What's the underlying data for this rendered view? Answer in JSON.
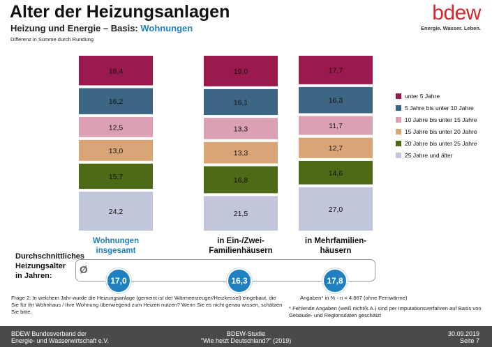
{
  "header": {
    "title": "Alter der Heizungsanlagen",
    "subtitle_prefix": "Heizung und Energie – Basis: ",
    "subtitle_highlight": "Wohnungen",
    "note": "Differenz in Summe durch Rundung"
  },
  "logo": {
    "word": "bdew",
    "tagline": "Energie. Wasser. Leben."
  },
  "colors": {
    "accent": "#1e7fc1",
    "brand_red": "#d8262e",
    "footer_bg": "#4a4a4a"
  },
  "chart_data": {
    "type": "bar",
    "stacked": true,
    "categories": [
      "Wohnungen\ninsgesamt",
      "in Ein-/Zwei-\nFamilienhäusern",
      "in Mehrfamilien-\nhäusern"
    ],
    "series": [
      {
        "name": "unter 5 Jahre",
        "color": "#9b1a4e",
        "values": [
          18.4,
          19.0,
          17.7
        ],
        "labels": [
          "18,4",
          "19,0",
          "17,7"
        ]
      },
      {
        "name": "5 Jahre bis unter 10 Jahre",
        "color": "#3d6584",
        "values": [
          16.2,
          16.1,
          16.3
        ],
        "labels": [
          "16,2",
          "16,1",
          "16,3"
        ]
      },
      {
        "name": "10 Jahre bis unter 15 Jahre",
        "color": "#dba0b4",
        "values": [
          12.5,
          13.3,
          11.7
        ],
        "labels": [
          "12,5",
          "13,3",
          "11,7"
        ]
      },
      {
        "name": "15 Jahre bis unter 20 Jahre",
        "color": "#d9a476",
        "values": [
          13.0,
          13.3,
          12.7
        ],
        "labels": [
          "13,0",
          "13,3",
          "12,7"
        ]
      },
      {
        "name": "20 Jahre bis unter 25 Jahre",
        "color": "#4d6a17",
        "values": [
          15.7,
          16.8,
          14.6
        ],
        "labels": [
          "15,7",
          "16,8",
          "14,6"
        ]
      },
      {
        "name": "25 Jahre und älter",
        "color": "#c2c6da",
        "values": [
          24.2,
          21.5,
          27.0
        ],
        "labels": [
          "24,2",
          "21,5",
          "27,0"
        ]
      }
    ],
    "legend_position": "right",
    "grid": false
  },
  "average": {
    "label_lines": [
      "Durchschnittliches",
      "Heizungsalter",
      "in Jahren:"
    ],
    "symbol": "Ø",
    "values": [
      "17,0",
      "16,3",
      "17,8"
    ]
  },
  "footnotes": {
    "question": "Frage 2: In welchem Jahr wurde die Heizungsanlage (gemeint ist der Wärmeerzeuger/Heizkessel) eingebaut, die Sie für Ihr Wohnhaus / Ihre Wohnung überwiegend zum Heizen nutzen? Wenn Sie es nicht genau wissen, schätzen Sie bitte.",
    "basis": "Angaben* in % - n = 4.867 (ohne Fernwärme)",
    "missing": "* Fehlende Angaben (weiß nicht/k.A.) sind per Imputationsverfahren auf Basis von Gebäude- und Regionsdaten geschätzt"
  },
  "footer": {
    "left_line1": "BDEW Bundesverband der",
    "left_line2": "Energie- und Wasserwirtschaft e.V.",
    "mid_line1": "BDEW-Studie",
    "mid_line2": "\"Wie heizt Deutschland?\" (2019)",
    "right_line1": "30.09.2019",
    "right_line2": "Seite 7"
  }
}
